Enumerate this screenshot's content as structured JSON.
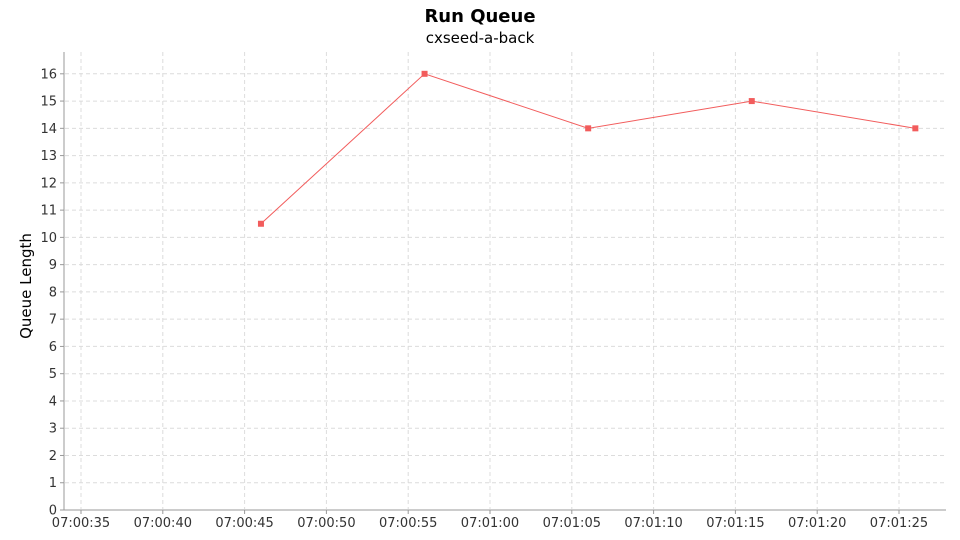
{
  "chart_data": {
    "type": "line",
    "title": "Run Queue",
    "subtitle": "cxseed-a-back",
    "xlabel": "",
    "ylabel": "Queue Length",
    "x_ticks": [
      "07:00:35",
      "07:00:40",
      "07:00:45",
      "07:00:50",
      "07:00:55",
      "07:01:00",
      "07:01:05",
      "07:01:10",
      "07:01:15",
      "07:01:20",
      "07:01:25"
    ],
    "y_ticks": [
      "0",
      "1",
      "2",
      "3",
      "4",
      "5",
      "6",
      "7",
      "8",
      "9",
      "10",
      "11",
      "12",
      "13",
      "14",
      "15",
      "16"
    ],
    "ylim": [
      0,
      16.8
    ],
    "grid": true,
    "series": [
      {
        "color": "#f25c5c",
        "points": [
          {
            "x": "07:00:46",
            "y": 10.5
          },
          {
            "x": "07:00:56",
            "y": 16
          },
          {
            "x": "07:01:06",
            "y": 14
          },
          {
            "x": "07:01:16",
            "y": 15
          },
          {
            "x": "07:01:26",
            "y": 14
          }
        ]
      }
    ]
  }
}
